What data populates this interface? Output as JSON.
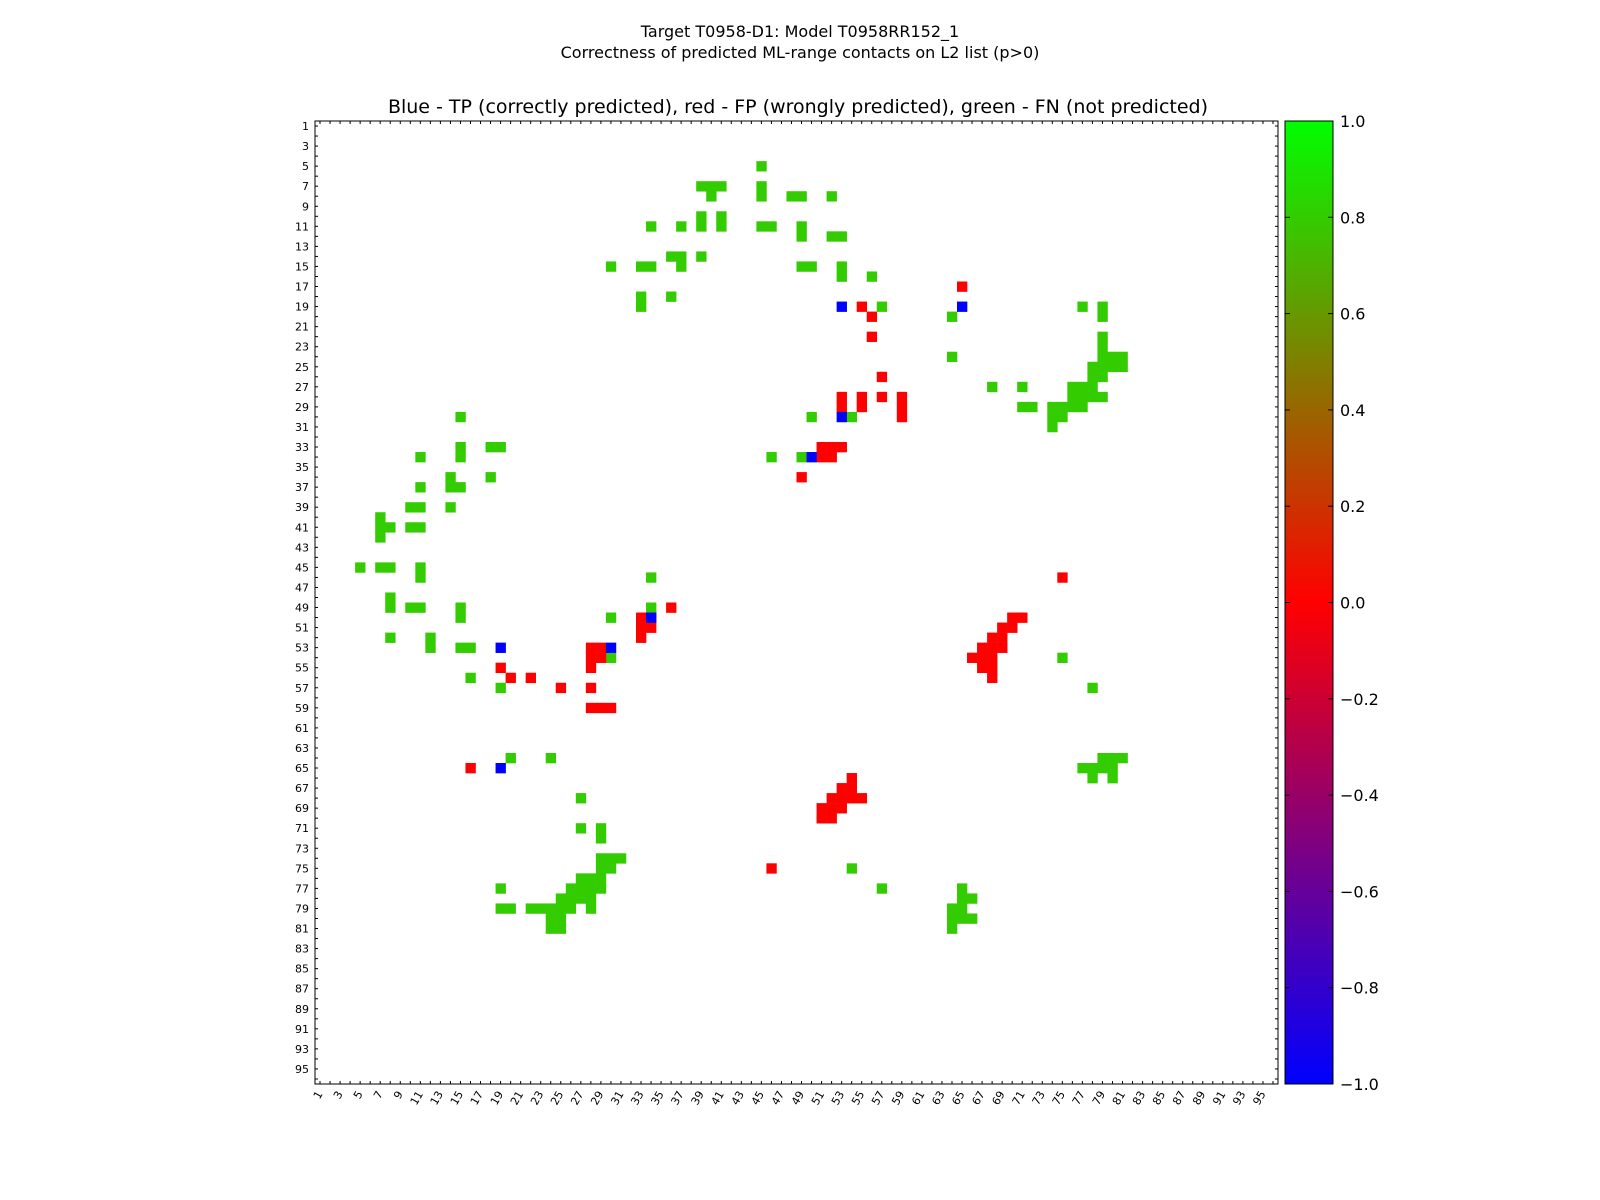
{
  "figure": {
    "title_line1": "Target T0958-D1: Model T0958RR152_1",
    "title_line2": "Correctness of predicted ML-range contacts on L2 list (p>0)"
  },
  "chart_data": {
    "type": "heatmap",
    "title": "Blue - TP (correctly predicted), red - FP (wrongly predicted), green - FN (not predicted)",
    "xlabel": "",
    "ylabel": "",
    "xlim": [
      1,
      96
    ],
    "ylim": [
      1,
      96
    ],
    "x_ticks": [
      1,
      3,
      5,
      7,
      9,
      11,
      13,
      15,
      17,
      19,
      21,
      23,
      25,
      27,
      29,
      31,
      33,
      35,
      37,
      39,
      41,
      43,
      45,
      47,
      49,
      51,
      53,
      55,
      57,
      59,
      61,
      63,
      65,
      67,
      69,
      71,
      73,
      75,
      77,
      79,
      81,
      83,
      85,
      87,
      89,
      91,
      93,
      95
    ],
    "y_ticks": [
      1,
      3,
      5,
      7,
      9,
      11,
      13,
      15,
      17,
      19,
      21,
      23,
      25,
      27,
      29,
      31,
      33,
      35,
      37,
      39,
      41,
      43,
      45,
      47,
      49,
      51,
      53,
      55,
      57,
      59,
      61,
      63,
      65,
      67,
      69,
      71,
      73,
      75,
      77,
      79,
      81,
      83,
      85,
      87,
      89,
      91,
      93,
      95
    ],
    "colorbar": {
      "min": -1.0,
      "max": 1.0,
      "ticks": [
        "1.0",
        "0.8",
        "0.6",
        "0.4",
        "0.2",
        "0.0",
        "−0.2",
        "−0.4",
        "−0.6",
        "−0.8",
        "−1.0"
      ],
      "tick_values": [
        1.0,
        0.8,
        0.6,
        0.4,
        0.2,
        0.0,
        -0.2,
        -0.4,
        -0.6,
        -0.8,
        -1.0
      ],
      "colors": [
        "#0000ff",
        "#ff0000",
        "#00ff00"
      ]
    },
    "categories": {
      "TP": {
        "value": -1,
        "color": "#0000ff"
      },
      "FP": {
        "value": 0,
        "color": "#ff0000"
      },
      "FN": {
        "value": 0.8,
        "color": "#33cc00"
      }
    },
    "cells": {
      "TP": [
        [
          53,
          19
        ],
        [
          65,
          19
        ],
        [
          53,
          30
        ],
        [
          50,
          34
        ],
        [
          19,
          53
        ],
        [
          30,
          53
        ],
        [
          34,
          50
        ],
        [
          19,
          65
        ]
      ],
      "FP": [
        [
          65,
          17
        ],
        [
          55,
          19
        ],
        [
          56,
          20
        ],
        [
          56,
          22
        ],
        [
          57,
          26
        ],
        [
          53,
          28
        ],
        [
          53,
          29
        ],
        [
          55,
          28
        ],
        [
          55,
          29
        ],
        [
          57,
          28
        ],
        [
          59,
          28
        ],
        [
          59,
          29
        ],
        [
          59,
          30
        ],
        [
          51,
          33
        ],
        [
          52,
          33
        ],
        [
          53,
          33
        ],
        [
          51,
          34
        ],
        [
          52,
          34
        ],
        [
          49,
          36
        ],
        [
          75,
          46
        ],
        [
          36,
          49
        ],
        [
          33,
          50
        ],
        [
          34,
          50
        ],
        [
          33,
          51
        ],
        [
          34,
          51
        ],
        [
          33,
          52
        ],
        [
          28,
          53
        ],
        [
          29,
          53
        ],
        [
          29,
          54
        ],
        [
          28,
          54
        ],
        [
          28,
          55
        ],
        [
          19,
          55
        ],
        [
          20,
          56
        ],
        [
          22,
          56
        ],
        [
          25,
          57
        ],
        [
          28,
          57
        ],
        [
          28,
          59
        ],
        [
          29,
          59
        ],
        [
          30,
          59
        ],
        [
          16,
          65
        ],
        [
          70,
          50
        ],
        [
          71,
          50
        ],
        [
          69,
          51
        ],
        [
          70,
          51
        ],
        [
          68,
          52
        ],
        [
          69,
          52
        ],
        [
          67,
          53
        ],
        [
          68,
          53
        ],
        [
          69,
          53
        ],
        [
          66,
          54
        ],
        [
          67,
          54
        ],
        [
          68,
          54
        ],
        [
          67,
          55
        ],
        [
          68,
          55
        ],
        [
          68,
          56
        ],
        [
          54,
          66
        ],
        [
          53,
          67
        ],
        [
          54,
          67
        ],
        [
          52,
          68
        ],
        [
          53,
          68
        ],
        [
          54,
          68
        ],
        [
          55,
          68
        ],
        [
          51,
          69
        ],
        [
          52,
          69
        ],
        [
          53,
          69
        ],
        [
          51,
          70
        ],
        [
          52,
          70
        ],
        [
          46,
          75
        ]
      ],
      "FN": [
        [
          45,
          5
        ],
        [
          39,
          7
        ],
        [
          40,
          7
        ],
        [
          41,
          7
        ],
        [
          45,
          7
        ],
        [
          40,
          8
        ],
        [
          45,
          8
        ],
        [
          48,
          8
        ],
        [
          49,
          8
        ],
        [
          52,
          8
        ],
        [
          34,
          11
        ],
        [
          37,
          11
        ],
        [
          39,
          10
        ],
        [
          39,
          11
        ],
        [
          41,
          10
        ],
        [
          41,
          11
        ],
        [
          45,
          11
        ],
        [
          46,
          11
        ],
        [
          49,
          11
        ],
        [
          49,
          12
        ],
        [
          52,
          12
        ],
        [
          53,
          12
        ],
        [
          36,
          14
        ],
        [
          37,
          14
        ],
        [
          37,
          15
        ],
        [
          39,
          14
        ],
        [
          30,
          15
        ],
        [
          33,
          15
        ],
        [
          34,
          15
        ],
        [
          49,
          15
        ],
        [
          50,
          15
        ],
        [
          53,
          15
        ],
        [
          53,
          16
        ],
        [
          56,
          16
        ],
        [
          33,
          18
        ],
        [
          33,
          19
        ],
        [
          36,
          18
        ],
        [
          54,
          30
        ],
        [
          57,
          19
        ],
        [
          64,
          20
        ],
        [
          64,
          24
        ],
        [
          68,
          27
        ],
        [
          71,
          27
        ],
        [
          77,
          19
        ],
        [
          79,
          19
        ],
        [
          79,
          20
        ],
        [
          79,
          22
        ],
        [
          79,
          23
        ],
        [
          79,
          24
        ],
        [
          80,
          24
        ],
        [
          81,
          24
        ],
        [
          80,
          25
        ],
        [
          81,
          25
        ],
        [
          78,
          25
        ],
        [
          79,
          25
        ],
        [
          78,
          26
        ],
        [
          79,
          26
        ],
        [
          76,
          27
        ],
        [
          77,
          27
        ],
        [
          78,
          27
        ],
        [
          76,
          28
        ],
        [
          77,
          28
        ],
        [
          78,
          28
        ],
        [
          79,
          28
        ],
        [
          71,
          29
        ],
        [
          72,
          29
        ],
        [
          74,
          29
        ],
        [
          75,
          29
        ],
        [
          76,
          29
        ],
        [
          77,
          29
        ],
        [
          74,
          30
        ],
        [
          75,
          30
        ],
        [
          74,
          31
        ],
        [
          50,
          30
        ],
        [
          46,
          34
        ],
        [
          49,
          34
        ],
        [
          15,
          30
        ],
        [
          15,
          33
        ],
        [
          15,
          34
        ],
        [
          18,
          33
        ],
        [
          19,
          33
        ],
        [
          11,
          34
        ],
        [
          18,
          36
        ],
        [
          11,
          37
        ],
        [
          14,
          36
        ],
        [
          14,
          37
        ],
        [
          15,
          37
        ],
        [
          7,
          40
        ],
        [
          7,
          41
        ],
        [
          8,
          41
        ],
        [
          7,
          42
        ],
        [
          10,
          39
        ],
        [
          11,
          39
        ],
        [
          10,
          41
        ],
        [
          11,
          41
        ],
        [
          14,
          39
        ],
        [
          5,
          45
        ],
        [
          7,
          45
        ],
        [
          8,
          45
        ],
        [
          11,
          45
        ],
        [
          11,
          46
        ],
        [
          34,
          46
        ],
        [
          8,
          48
        ],
        [
          8,
          49
        ],
        [
          10,
          49
        ],
        [
          11,
          49
        ],
        [
          15,
          49
        ],
        [
          15,
          50
        ],
        [
          8,
          52
        ],
        [
          12,
          52
        ],
        [
          12,
          53
        ],
        [
          15,
          53
        ],
        [
          16,
          53
        ],
        [
          30,
          50
        ],
        [
          34,
          49
        ],
        [
          30,
          54
        ],
        [
          75,
          54
        ],
        [
          16,
          56
        ],
        [
          19,
          57
        ],
        [
          78,
          57
        ],
        [
          20,
          64
        ],
        [
          24,
          64
        ],
        [
          79,
          64
        ],
        [
          80,
          64
        ],
        [
          81,
          64
        ],
        [
          77,
          65
        ],
        [
          78,
          65
        ],
        [
          79,
          65
        ],
        [
          80,
          65
        ],
        [
          78,
          66
        ],
        [
          80,
          66
        ],
        [
          27,
          68
        ],
        [
          27,
          71
        ],
        [
          29,
          71
        ],
        [
          29,
          72
        ],
        [
          29,
          74
        ],
        [
          30,
          74
        ],
        [
          31,
          74
        ],
        [
          29,
          75
        ],
        [
          30,
          75
        ],
        [
          27,
          76
        ],
        [
          28,
          76
        ],
        [
          29,
          76
        ],
        [
          19,
          77
        ],
        [
          26,
          77
        ],
        [
          27,
          77
        ],
        [
          28,
          77
        ],
        [
          29,
          77
        ],
        [
          25,
          78
        ],
        [
          26,
          78
        ],
        [
          27,
          78
        ],
        [
          28,
          78
        ],
        [
          19,
          79
        ],
        [
          20,
          79
        ],
        [
          22,
          79
        ],
        [
          23,
          79
        ],
        [
          24,
          79
        ],
        [
          25,
          79
        ],
        [
          26,
          79
        ],
        [
          28,
          79
        ],
        [
          24,
          80
        ],
        [
          25,
          80
        ],
        [
          24,
          81
        ],
        [
          25,
          81
        ],
        [
          54,
          75
        ],
        [
          57,
          77
        ],
        [
          65,
          77
        ],
        [
          65,
          78
        ],
        [
          66,
          78
        ],
        [
          64,
          79
        ],
        [
          65,
          79
        ],
        [
          64,
          80
        ],
        [
          65,
          80
        ],
        [
          66,
          80
        ],
        [
          64,
          81
        ]
      ]
    }
  }
}
